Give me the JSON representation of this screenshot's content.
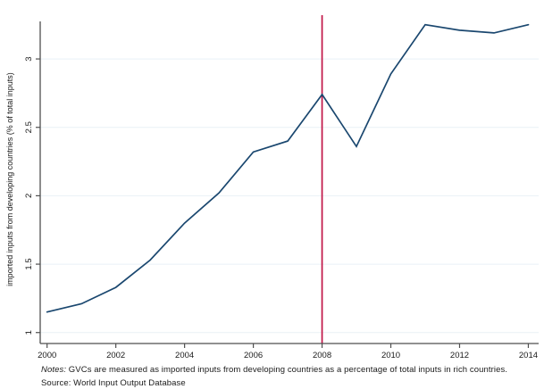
{
  "figure": {
    "notes_label": "Notes:",
    "notes_text": " GVCs are measured as imported inputs from developing countries as a percentage of total inputs in rich countries.",
    "source_text": "Source: World Input Output Database"
  },
  "colors": {
    "series_line": "#1a476f",
    "event_line": "#c11547",
    "grid": "#e9f1f6",
    "axis": "#4f4f4f",
    "text": "#1a1a1a"
  },
  "chart_data": {
    "type": "line",
    "title": "",
    "xlabel": "",
    "ylabel": "imported inputs from developing countries (% of total inputs)",
    "x": [
      2000,
      2001,
      2002,
      2003,
      2004,
      2005,
      2006,
      2007,
      2008,
      2009,
      2010,
      2011,
      2012,
      2013,
      2014
    ],
    "y": [
      1.15,
      1.21,
      1.33,
      1.53,
      1.8,
      2.02,
      2.32,
      2.4,
      2.74,
      2.36,
      2.89,
      3.25,
      3.21,
      3.19,
      3.25
    ],
    "x_ticks": [
      2000,
      2002,
      2004,
      2006,
      2008,
      2010,
      2012,
      2014
    ],
    "y_ticks": [
      1,
      1.5,
      2,
      2.5,
      3
    ],
    "y_tick_labels": [
      "1",
      "1.5",
      "2",
      "2.5",
      "3"
    ],
    "xlim": [
      1999.8,
      2014.3
    ],
    "ylim": [
      0.92,
      3.32
    ],
    "grid": "horizontal",
    "vline_x": 2008,
    "legend": "none"
  }
}
